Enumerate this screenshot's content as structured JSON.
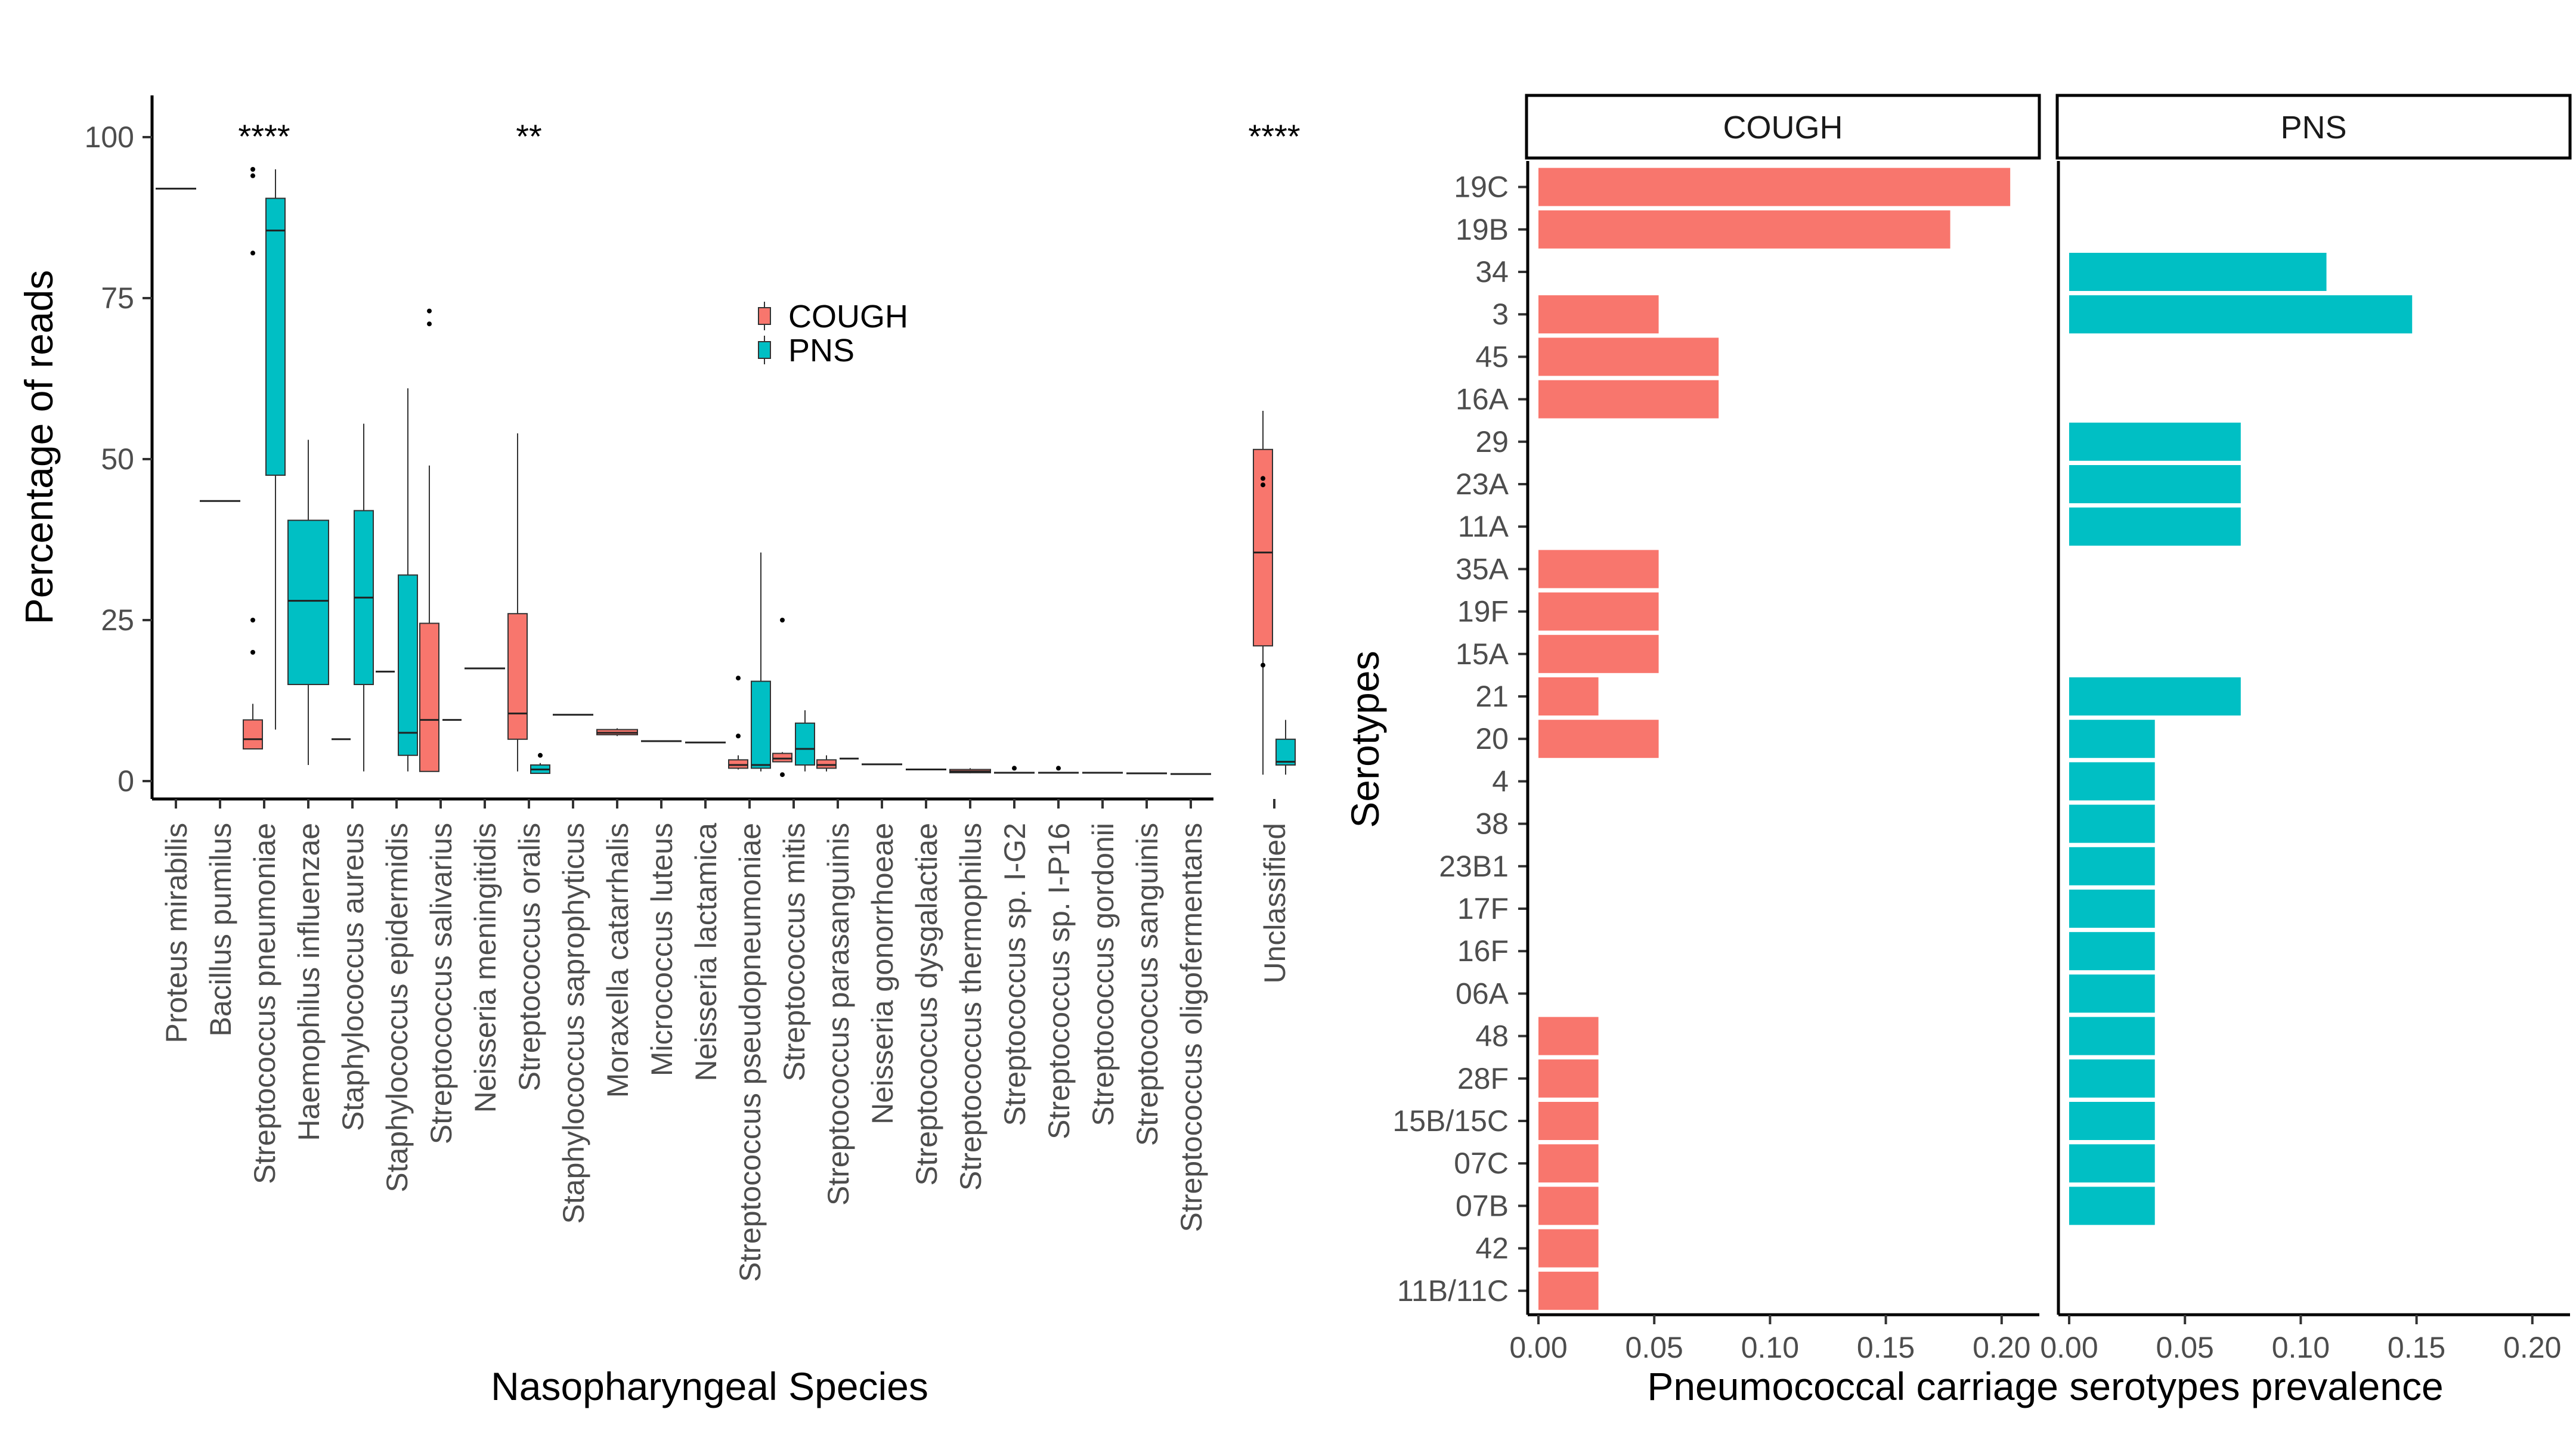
{
  "chart_data": [
    {
      "type": "box",
      "xlabel": "Nasopharyngeal Species",
      "ylabel": "Percentage of reads",
      "ylim": [
        0,
        100
      ],
      "yticks": [
        0,
        25,
        50,
        75,
        100
      ],
      "legend": {
        "placement": "center",
        "entries": [
          {
            "name": "COUGH",
            "color": "#F8766D"
          },
          {
            "name": "PNS",
            "color": "#00BFC4"
          }
        ]
      },
      "categories": [
        {
          "name": "Proteus mirabilis",
          "boxes": [
            {
              "group": "COUGH",
              "median": 92
            }
          ]
        },
        {
          "name": "Bacillus pumilus",
          "boxes": [
            {
              "group": "COUGH",
              "median": 43.5
            }
          ]
        },
        {
          "name": "Streptococcus pneumoniae",
          "significance": "****",
          "boxes": [
            {
              "group": "COUGH",
              "min": 5,
              "q1": 5,
              "median": 6.5,
              "q3": 9.5,
              "max": 12,
              "outliers": [
                20,
                25,
                82,
                94,
                95
              ]
            },
            {
              "group": "PNS",
              "min": 8,
              "q1": 47.5,
              "median": 85.5,
              "q3": 90.5,
              "max": 95,
              "outliers": []
            }
          ]
        },
        {
          "name": "Haemophilus influenzae",
          "boxes": [
            {
              "group": "PNS",
              "min": 2.5,
              "q1": 15,
              "median": 28,
              "q3": 40.5,
              "max": 53,
              "outliers": []
            }
          ]
        },
        {
          "name": "Staphylococcus aureus",
          "boxes": [
            {
              "group": "COUGH",
              "median": 6.5
            },
            {
              "group": "PNS",
              "min": 1.5,
              "q1": 15,
              "median": 28.5,
              "q3": 42,
              "max": 55.5,
              "outliers": []
            }
          ]
        },
        {
          "name": "Staphylococcus epidermidis",
          "boxes": [
            {
              "group": "COUGH",
              "median": 17
            },
            {
              "group": "PNS",
              "min": 1.5,
              "q1": 4,
              "median": 7.5,
              "q3": 32,
              "max": 61,
              "outliers": []
            }
          ]
        },
        {
          "name": "Streptococcus salivarius",
          "boxes": [
            {
              "group": "COUGH",
              "min": 1.5,
              "q1": 1.5,
              "median": 9.5,
              "q3": 24.5,
              "max": 49,
              "outliers": [
                71,
                73
              ]
            },
            {
              "group": "PNS",
              "median": 9.5
            }
          ]
        },
        {
          "name": "Neisseria meningitidis",
          "boxes": [
            {
              "group": "COUGH",
              "median": 17.5
            }
          ]
        },
        {
          "name": "Streptococcus oralis",
          "significance": "**",
          "boxes": [
            {
              "group": "COUGH",
              "min": 1.5,
              "q1": 6.5,
              "median": 10.5,
              "q3": 26,
              "max": 54,
              "outliers": []
            },
            {
              "group": "PNS",
              "min": 1.2,
              "q1": 1.2,
              "median": 1.8,
              "q3": 2.5,
              "max": 2.8,
              "outliers": [
                4
              ]
            }
          ]
        },
        {
          "name": "Staphylococcus saprophyticus",
          "boxes": [
            {
              "group": "COUGH",
              "median": 10.3
            }
          ]
        },
        {
          "name": "Moraxella catarrhalis",
          "boxes": [
            {
              "group": "COUGH",
              "min": 7,
              "q1": 7.2,
              "median": 7.5,
              "q3": 8,
              "max": 8.2,
              "outliers": []
            }
          ]
        },
        {
          "name": "Micrococcus luteus",
          "boxes": [
            {
              "group": "COUGH",
              "median": 6.2
            }
          ]
        },
        {
          "name": "Neisseria lactamica",
          "boxes": [
            {
              "group": "COUGH",
              "median": 6
            }
          ]
        },
        {
          "name": "Streptococcus pseudopneumoniae",
          "boxes": [
            {
              "group": "COUGH",
              "min": 1.8,
              "q1": 2,
              "median": 2.5,
              "q3": 3.3,
              "max": 4,
              "outliers": [
                7,
                16
              ]
            },
            {
              "group": "PNS",
              "min": 1.5,
              "q1": 2,
              "median": 2.5,
              "q3": 15.5,
              "max": 35.5,
              "outliers": []
            }
          ]
        },
        {
          "name": "Streptococcus mitis",
          "boxes": [
            {
              "group": "COUGH",
              "min": 3,
              "q1": 3,
              "median": 3.5,
              "q3": 4.3,
              "max": 4.5,
              "outliers": [
                1,
                25
              ]
            },
            {
              "group": "PNS",
              "min": 1.5,
              "q1": 2.5,
              "median": 5,
              "q3": 9,
              "max": 11,
              "outliers": []
            }
          ]
        },
        {
          "name": "Streptococcus parasanguinis",
          "boxes": [
            {
              "group": "COUGH",
              "min": 1.5,
              "q1": 2,
              "median": 2.5,
              "q3": 3.3,
              "max": 4,
              "outliers": []
            },
            {
              "group": "PNS",
              "median": 3.5
            }
          ]
        },
        {
          "name": "Neisseria gonorrhoeae",
          "boxes": [
            {
              "group": "COUGH",
              "median": 2.6
            }
          ]
        },
        {
          "name": "Streptococcus dysgalactiae",
          "boxes": [
            {
              "group": "COUGH",
              "median": 1.8
            }
          ]
        },
        {
          "name": "Streptococcus thermophilus",
          "boxes": [
            {
              "group": "COUGH",
              "min": 1.2,
              "q1": 1.3,
              "median": 1.5,
              "q3": 1.8,
              "max": 2,
              "outliers": []
            }
          ]
        },
        {
          "name": "Streptococcus sp. I-G2",
          "boxes": [
            {
              "group": "COUGH",
              "median": 1.3,
              "outliers": [
                2
              ]
            }
          ]
        },
        {
          "name": "Streptococcus sp. I-P16",
          "boxes": [
            {
              "group": "COUGH",
              "median": 1.3,
              "outliers": [
                2
              ]
            }
          ]
        },
        {
          "name": "Streptococcus gordonii",
          "boxes": [
            {
              "group": "COUGH",
              "median": 1.3
            }
          ]
        },
        {
          "name": "Streptococcus sanguinis",
          "boxes": [
            {
              "group": "COUGH",
              "median": 1.2
            }
          ]
        },
        {
          "name": "Streptococcus oligofermentans",
          "boxes": [
            {
              "group": "COUGH",
              "median": 1.1
            }
          ]
        },
        {
          "name": "Unclassified",
          "significance": "****",
          "boxes": [
            {
              "group": "COUGH",
              "min": 1,
              "q1": 21,
              "median": 35.5,
              "q3": 51.5,
              "max": 57.5,
              "outliers": [
                18,
                46,
                47
              ]
            },
            {
              "group": "PNS",
              "min": 1,
              "q1": 2.5,
              "median": 3,
              "q3": 6.5,
              "max": 9.5,
              "outliers": []
            }
          ]
        }
      ]
    },
    {
      "type": "bar",
      "orientation": "horizontal",
      "xlabel": "Pneumococcal carriage serotypes prevalence",
      "ylabel": "Serotypes",
      "xlim": [
        0,
        0.2
      ],
      "xticks": [
        "0.00",
        "0.05",
        "0.10",
        "0.15",
        "0.20"
      ],
      "categories": [
        "19C",
        "19B",
        "34",
        "3",
        "45",
        "16A",
        "29",
        "23A",
        "11A",
        "35A",
        "19F",
        "15A",
        "21",
        "20",
        "4",
        "38",
        "23B1",
        "17F",
        "16F",
        "06A",
        "48",
        "28F",
        "15B/15C",
        "07C",
        "07B",
        "42",
        "11B/11C"
      ],
      "panels": [
        {
          "name": "COUGH",
          "color": "#F8766D",
          "values": [
            0.2037,
            0.1778,
            0,
            0.0519,
            0.0778,
            0.0778,
            0,
            0,
            0,
            0.0519,
            0.0519,
            0.0519,
            0.0259,
            0.0519,
            0,
            0,
            0,
            0,
            0,
            0,
            0.0259,
            0.0259,
            0.0259,
            0.0259,
            0.0259,
            0.0259,
            0.0259
          ]
        },
        {
          "name": "PNS",
          "color": "#00BFC4",
          "values": [
            0,
            0,
            0.1111,
            0.1481,
            0,
            0,
            0.0741,
            0.0741,
            0.0741,
            0,
            0,
            0,
            0.0741,
            0.037,
            0.037,
            0.037,
            0.037,
            0.037,
            0.037,
            0.037,
            0.037,
            0.037,
            0.037,
            0.037,
            0.037,
            0,
            0
          ]
        }
      ]
    }
  ]
}
